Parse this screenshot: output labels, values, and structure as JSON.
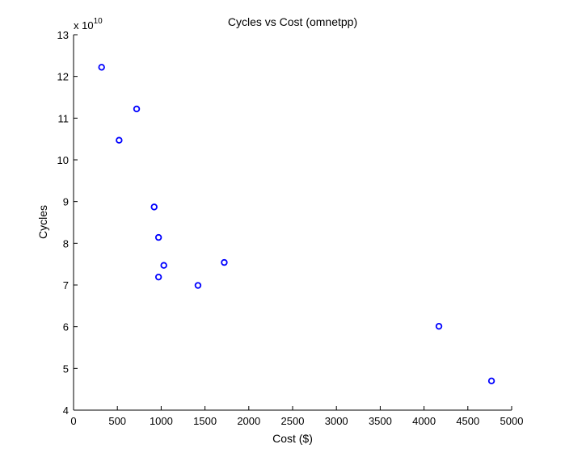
{
  "chart_data": {
    "type": "scatter",
    "title": "Cycles vs Cost (omnetpp)",
    "xlabel": "Cost ($)",
    "ylabel": "Cycles",
    "xlim": [
      0,
      5000
    ],
    "ylim": [
      4,
      13
    ],
    "x_ticks": [
      0,
      500,
      1000,
      1500,
      2000,
      2500,
      3000,
      3500,
      4000,
      4500,
      5000
    ],
    "y_ticks": [
      4,
      5,
      6,
      7,
      8,
      9,
      10,
      11,
      12,
      13
    ],
    "y_multiplier_prefix": "x 10",
    "y_multiplier_exponent": "10",
    "grid": false,
    "marker": "circle",
    "marker_color": "#0000ff",
    "series": [
      {
        "points": [
          {
            "x": 320,
            "y": 12.22
          },
          {
            "x": 720,
            "y": 11.22
          },
          {
            "x": 520,
            "y": 10.47
          },
          {
            "x": 920,
            "y": 8.87
          },
          {
            "x": 970,
            "y": 8.14
          },
          {
            "x": 1030,
            "y": 7.47
          },
          {
            "x": 970,
            "y": 7.19
          },
          {
            "x": 1420,
            "y": 6.99
          },
          {
            "x": 1720,
            "y": 7.54
          },
          {
            "x": 4170,
            "y": 6.01
          },
          {
            "x": 4770,
            "y": 4.7
          }
        ]
      }
    ]
  }
}
